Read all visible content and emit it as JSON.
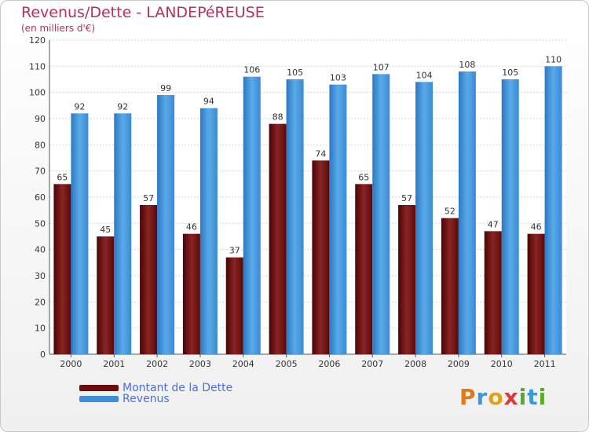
{
  "header": {
    "title": "Revenus/Dette - LANDEPéREUSE",
    "subtitle": "(en milliers d'€)"
  },
  "legend": {
    "items": [
      {
        "label": "Montant de la Dette",
        "color": "#6b0d0d"
      },
      {
        "label": "Revenus",
        "color": "#3d8fd8"
      }
    ]
  },
  "logo": {
    "letters": [
      {
        "ch": "P",
        "color": "#e07b1a"
      },
      {
        "ch": "r",
        "color": "#3a9ad9"
      },
      {
        "ch": "o",
        "color": "#e0a21a"
      },
      {
        "ch": "x",
        "color": "#d93a3a"
      },
      {
        "ch": "i",
        "color": "#5aaa2a"
      },
      {
        "ch": "t",
        "color": "#3a9ad9"
      },
      {
        "ch": "i",
        "color": "#5aaa2a"
      }
    ]
  },
  "chart_data": {
    "type": "bar",
    "categories": [
      "2000",
      "2001",
      "2002",
      "2003",
      "2004",
      "2005",
      "2006",
      "2007",
      "2008",
      "2009",
      "2010",
      "2011"
    ],
    "series": [
      {
        "name": "Montant de la Dette",
        "color": "#6b0d0d",
        "values": [
          65,
          45,
          57,
          46,
          37,
          88,
          74,
          65,
          57,
          52,
          47,
          46
        ]
      },
      {
        "name": "Revenus",
        "color": "#3d8fd8",
        "values": [
          92,
          92,
          99,
          94,
          106,
          105,
          103,
          107,
          104,
          108,
          105,
          110
        ]
      }
    ],
    "yticks": [
      0,
      10,
      20,
      30,
      40,
      50,
      60,
      70,
      80,
      90,
      100,
      110,
      120
    ],
    "ylim": [
      0,
      120
    ],
    "grid": true
  }
}
